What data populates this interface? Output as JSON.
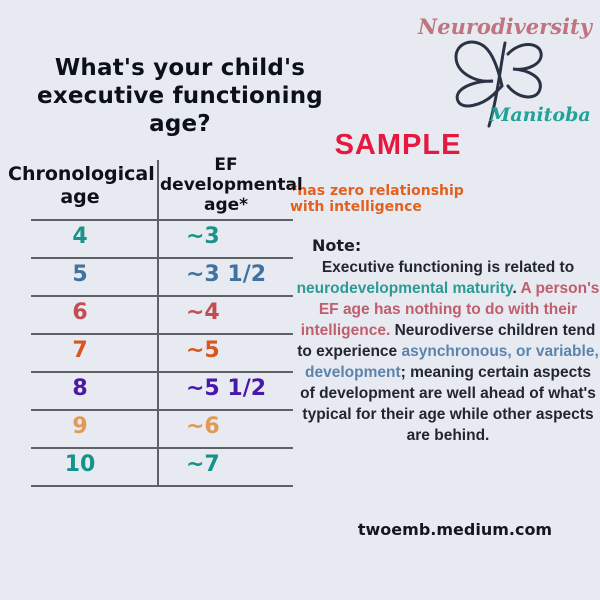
{
  "page": {
    "background_color": "#e8eaf1"
  },
  "header": {
    "title_line1": "What's your child's",
    "title_line2": "executive functioning age?"
  },
  "logo": {
    "brand_top": "Neurodiversity",
    "brand_bottom": "Manitoba",
    "butterfly_icon": "butterfly-line-art",
    "brand_top_color": "#c0747f",
    "brand_bottom_color": "#22a29a",
    "butterfly_color": "#2a3244"
  },
  "sample": {
    "label": "SAMPLE",
    "color": "#e51940"
  },
  "footnote": {
    "text": "*has zero relationship with intelligence",
    "color": "#e2611f"
  },
  "table": {
    "col1_header": "Chronological age",
    "col2_header": "EF developmental age*",
    "rows": [
      {
        "chronological_age": "4",
        "ef_age": "~3",
        "color": "#1a9488"
      },
      {
        "chronological_age": "5",
        "ef_age": "~3 1/2",
        "color": "#41729f"
      },
      {
        "chronological_age": "6",
        "ef_age": "~4",
        "color": "#c44d52"
      },
      {
        "chronological_age": "7",
        "ef_age": "~5",
        "color": "#d9571e"
      },
      {
        "chronological_age": "8",
        "ef_age": "~5 1/2",
        "color": "#4a18a8"
      },
      {
        "chronological_age": "9",
        "ef_age": "~6",
        "color": "#e09a55"
      },
      {
        "chronological_age": "10",
        "ef_age": "~7",
        "color": "#12948a"
      }
    ]
  },
  "chart_data": {
    "type": "table",
    "title": "What's your child's executive functioning age?",
    "columns": [
      "Chronological age",
      "EF developmental age*"
    ],
    "rows": [
      [
        "4",
        "~3"
      ],
      [
        "5",
        "~3 1/2"
      ],
      [
        "6",
        "~4"
      ],
      [
        "7",
        "~5"
      ],
      [
        "8",
        "~5 1/2"
      ],
      [
        "9",
        "~6"
      ],
      [
        "10",
        "~7"
      ]
    ],
    "footnote": "*has zero relationship with intelligence"
  },
  "note": {
    "heading": "Note:",
    "colors": {
      "dark": "#22262e",
      "teal": "#2b9b94",
      "rose": "#bf5f6d",
      "blue": "#5b84ad"
    },
    "segments": [
      {
        "text": "Executive functioning is related to ",
        "color": "dark"
      },
      {
        "text": "neurodevelopmental maturity",
        "color": "teal"
      },
      {
        "text": ". ",
        "color": "dark"
      },
      {
        "text": "A person's EF age has nothing to do with their intelligence.",
        "color": "rose"
      },
      {
        "text": " Neurodiverse children tend to experience ",
        "color": "dark"
      },
      {
        "text": "asynchronous, or variable, development",
        "color": "blue"
      },
      {
        "text": "; meaning certain aspects of development are well ahead of what's typical for their age while other aspects are behind.",
        "color": "dark"
      }
    ]
  },
  "website": {
    "text": "twoemb.medium.com"
  }
}
